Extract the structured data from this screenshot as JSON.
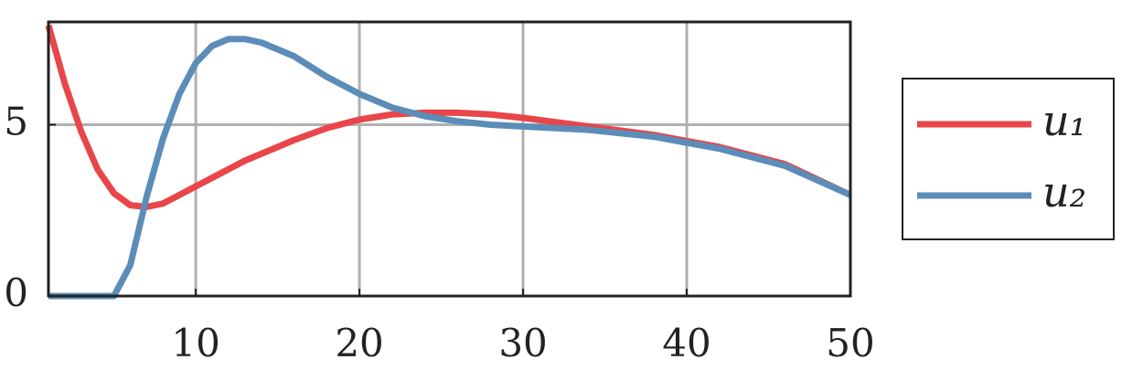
{
  "chart_data": {
    "type": "line",
    "x": [
      1,
      2,
      3,
      4,
      5,
      6,
      7,
      8,
      9,
      10,
      11,
      12,
      13,
      14,
      16,
      18,
      20,
      22,
      24,
      26,
      28,
      30,
      34,
      38,
      42,
      46,
      50
    ],
    "series": [
      {
        "name": "u₁",
        "color": "#e8464a",
        "values": [
          7.9,
          6.2,
          4.8,
          3.7,
          3.0,
          2.65,
          2.6,
          2.7,
          2.95,
          3.2,
          3.45,
          3.7,
          3.95,
          4.15,
          4.55,
          4.9,
          5.15,
          5.3,
          5.35,
          5.35,
          5.3,
          5.2,
          4.95,
          4.7,
          4.35,
          3.85,
          2.95
        ]
      },
      {
        "name": "u₂",
        "color": "#5b8db8",
        "values": [
          0,
          0,
          0,
          0,
          0,
          0.9,
          2.9,
          4.6,
          5.9,
          6.8,
          7.3,
          7.5,
          7.5,
          7.4,
          7.0,
          6.4,
          5.9,
          5.5,
          5.25,
          5.1,
          5.0,
          4.95,
          4.85,
          4.65,
          4.3,
          3.8,
          2.95
        ]
      }
    ],
    "xlim": [
      1,
      50
    ],
    "ylim": [
      0,
      8
    ],
    "xticks": [
      10,
      20,
      30,
      40,
      50
    ],
    "yticks": [
      0,
      5
    ],
    "grid": true,
    "legend": "right"
  }
}
